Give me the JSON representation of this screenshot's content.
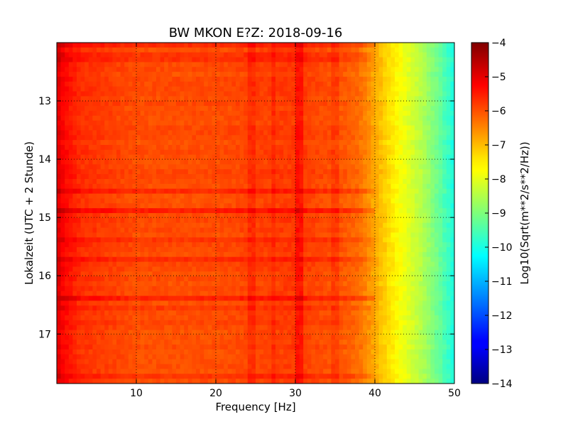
{
  "chart_data": {
    "type": "heatmap",
    "title": "BW MKON E?Z: 2018-09-16",
    "xlabel": "Frequency [Hz]",
    "ylabel": "Lokalzeit (UTC + 2 Stunde)",
    "colorbar_label": "Log10(Sqrt(m**2/s**2/Hz))",
    "xlim": [
      0,
      50
    ],
    "ylim": [
      12.0,
      17.85
    ],
    "y_inverted": true,
    "clim": [
      -14,
      -4
    ],
    "colormap": "jet",
    "grid": true,
    "x_ticks": [
      10,
      20,
      30,
      40,
      50
    ],
    "x_tick_labels": [
      "10",
      "20",
      "30",
      "40",
      "50"
    ],
    "y_ticks": [
      13,
      14,
      15,
      16,
      17
    ],
    "y_tick_labels": [
      "13",
      "14",
      "15",
      "16",
      "17"
    ],
    "colorbar_ticks": [
      -4,
      -5,
      -6,
      -7,
      -8,
      -9,
      -10,
      -11,
      -12,
      -13,
      -14
    ],
    "colorbar_tick_labels": [
      "−4",
      "−5",
      "−6",
      "−7",
      "−8",
      "−9",
      "−10",
      "−11",
      "−12",
      "−13",
      "−14"
    ],
    "spectrum_profile": {
      "frequency_hz": [
        0,
        1,
        3,
        10,
        20,
        30,
        36,
        38,
        40,
        42,
        44,
        46,
        48,
        50
      ],
      "log10_amplitude": [
        -4.9,
        -5.3,
        -5.7,
        -6.0,
        -6.0,
        -5.8,
        -6.1,
        -6.3,
        -6.9,
        -7.5,
        -8.0,
        -8.5,
        -9.2,
        -10.0
      ]
    },
    "vertical_bands_hz": [
      {
        "freq": 30.5,
        "delta": 0.4
      },
      {
        "freq": 24.5,
        "delta": 0.25
      },
      {
        "freq": 27.3,
        "delta": 0.2
      },
      {
        "freq": 35.0,
        "delta": 0.2
      }
    ],
    "horizontal_bands_local_time": [
      {
        "time": 12.08,
        "delta": 0.3
      },
      {
        "time": 12.25,
        "delta": 0.2
      },
      {
        "time": 14.52,
        "delta": 0.3
      },
      {
        "time": 14.85,
        "delta": 0.5
      },
      {
        "time": 15.42,
        "delta": 0.25
      },
      {
        "time": 15.72,
        "delta": 0.3
      },
      {
        "time": 16.42,
        "delta": 0.4
      },
      {
        "time": 16.55,
        "delta": 0.2
      },
      {
        "time": 17.7,
        "delta": 0.2
      }
    ]
  }
}
